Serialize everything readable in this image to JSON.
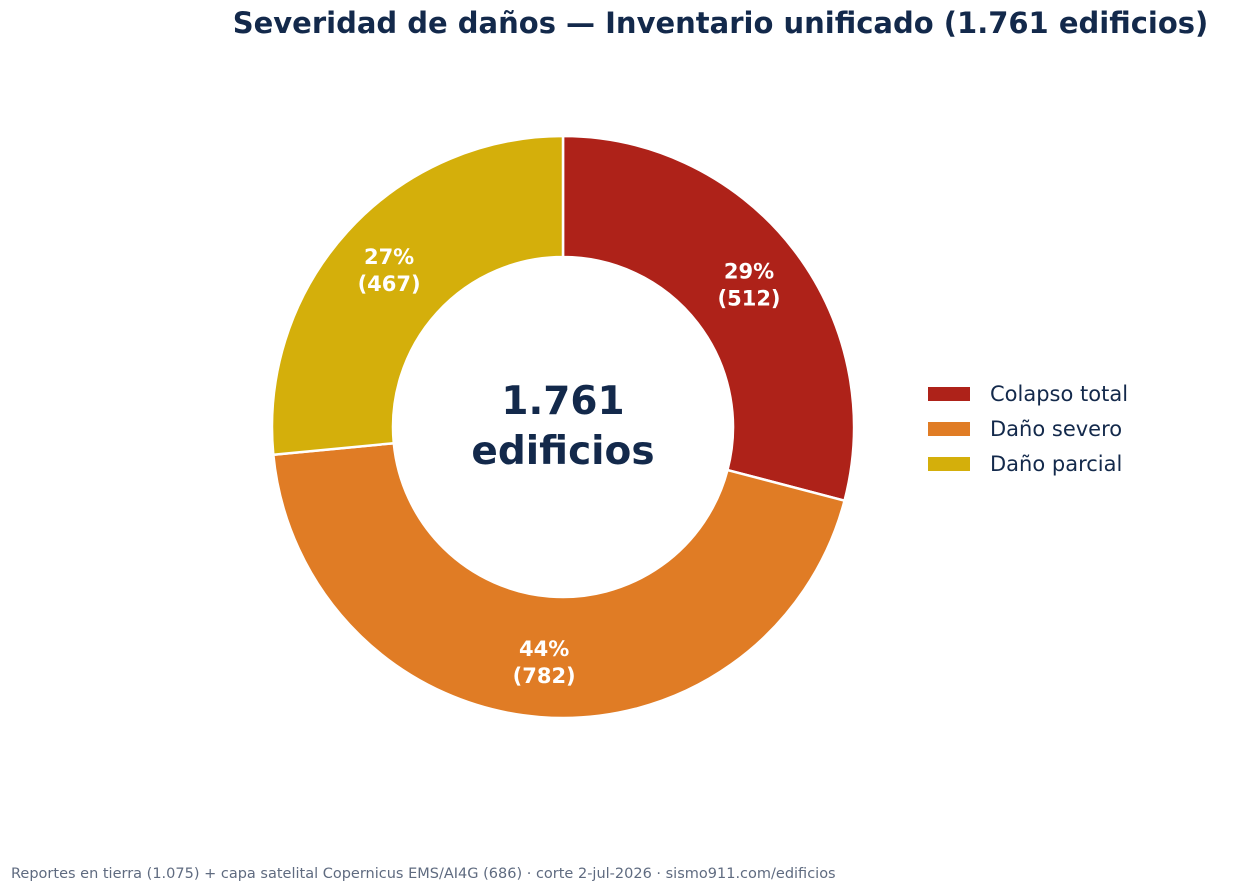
{
  "chart_data": {
    "type": "pie",
    "style": "donut",
    "title": "Severidad de daños — Inventario unificado (1.761 edificios)",
    "center_label": [
      "1.761",
      "edificios"
    ],
    "legend_position": "right",
    "slices": [
      {
        "name": "Colapso total",
        "value": 512,
        "percent_label": "29%",
        "count_label": "(512)",
        "color": "#ae2219"
      },
      {
        "name": "Daño severo",
        "value": 782,
        "percent_label": "44%",
        "count_label": "(782)",
        "color": "#e07c25"
      },
      {
        "name": "Daño parcial",
        "value": 467,
        "percent_label": "27%",
        "count_label": "(467)",
        "color": "#d4af0b"
      }
    ],
    "total": 1761
  },
  "footnote": "Reportes en tierra (1.075) + capa satelital Copernicus EMS/AI4G (686) · corte 2-jul-2026 · sismo911.com/edificios"
}
